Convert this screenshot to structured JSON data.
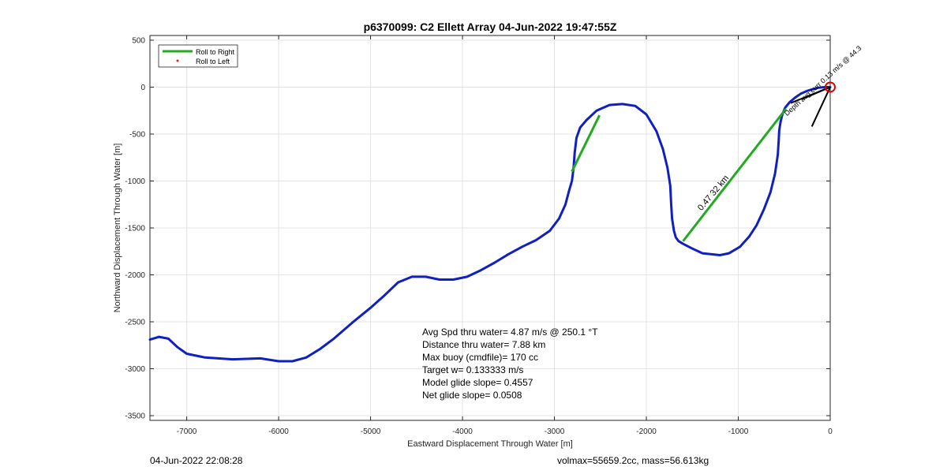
{
  "chart_data": {
    "type": "line",
    "title": "p6370099: C2 Ellett Array 04-Jun-2022 19:47:55Z",
    "xlabel": "Eastward Displacement Through Water [m]",
    "ylabel": "Northward Displacement Through Water [m]",
    "xlim": [
      -7400,
      0
    ],
    "ylim": [
      -3550,
      550
    ],
    "xticks": [
      -7000,
      -6000,
      -5000,
      -4000,
      -3000,
      -2000,
      -1000,
      0
    ],
    "yticks": [
      500,
      0,
      -500,
      -1000,
      -1500,
      -2000,
      -2500,
      -3000,
      -3500
    ],
    "grid": true,
    "legend_position": "top-left",
    "legend": [
      {
        "label": "Roll to Right",
        "color": "#22aa22",
        "marker": "line"
      },
      {
        "label": "Roll to Left",
        "color": "#dd2222",
        "marker": "dot"
      }
    ],
    "track": {
      "color": "#1020c0",
      "x": [
        -7400,
        -7300,
        -7200,
        -7100,
        -7000,
        -6800,
        -6500,
        -6200,
        -6000,
        -5850,
        -5700,
        -5550,
        -5400,
        -5200,
        -5000,
        -4850,
        -4700,
        -4550,
        -4400,
        -4250,
        -4100,
        -3950,
        -3800,
        -3650,
        -3500,
        -3350,
        -3200,
        -3050,
        -2950,
        -2880,
        -2840,
        -2810,
        -2800,
        -2790,
        -2780,
        -2760,
        -2720,
        -2650,
        -2540,
        -2400,
        -2260,
        -2120,
        -2000,
        -1890,
        -1820,
        -1770,
        -1740,
        -1730,
        -1720,
        -1700,
        -1680,
        -1650,
        -1600,
        -1500,
        -1390,
        -1300,
        -1200,
        -1100,
        -980,
        -880,
        -800,
        -720,
        -650,
        -600,
        -570,
        -560,
        -555,
        -540,
        -520,
        -490,
        -440,
        -380,
        -320,
        -250,
        -180,
        -120,
        -60,
        -20,
        0
      ],
      "y": [
        -2690,
        -2660,
        -2680,
        -2770,
        -2840,
        -2880,
        -2900,
        -2890,
        -2920,
        -2920,
        -2880,
        -2790,
        -2680,
        -2510,
        -2350,
        -2220,
        -2080,
        -2020,
        -2020,
        -2050,
        -2050,
        -2020,
        -1950,
        -1870,
        -1780,
        -1700,
        -1630,
        -1530,
        -1400,
        -1250,
        -1100,
        -1000,
        -930,
        -840,
        -700,
        -540,
        -430,
        -350,
        -250,
        -190,
        -180,
        -200,
        -290,
        -470,
        -660,
        -860,
        -1050,
        -1250,
        -1400,
        -1530,
        -1600,
        -1640,
        -1670,
        -1720,
        -1770,
        -1780,
        -1790,
        -1770,
        -1700,
        -1590,
        -1470,
        -1300,
        -1120,
        -920,
        -720,
        -560,
        -460,
        -370,
        -290,
        -220,
        -160,
        -110,
        -70,
        -40,
        -20,
        -5,
        0,
        0,
        0
      ]
    },
    "roll_right_segments": [
      {
        "x": [
          -2810,
          -2510
        ],
        "y": [
          -900,
          -300
        ]
      },
      {
        "x": [
          -1600,
          -480
        ],
        "y": [
          -1640,
          -230
        ]
      }
    ],
    "roll_left_points": [],
    "current_arrows": [
      {
        "x": [
          0,
          -430
        ],
        "y": [
          0,
          -170
        ]
      },
      {
        "x": [
          0,
          -200
        ],
        "y": [
          0,
          -420
        ]
      },
      {
        "x": [
          0,
          -310
        ],
        "y": [
          0,
          -130
        ]
      }
    ],
    "end_marker": {
      "x": 0,
      "y": 0,
      "color": "#dd0000"
    },
    "arrow_label": "Depth avg curr 0.13 m/s @ 44.3",
    "track_label": "0.47 32 km",
    "stats": [
      "Avg Spd thru water=  4.87 m/s @ 250.1 °T",
      "Distance thru water=  7.88 km",
      "Max buoy (cmdfile)= 170 cc",
      "Target w= 0.133333 m/s",
      "Model glide slope= 0.4557",
      "Net glide slope= 0.0508"
    ]
  },
  "footer": {
    "timestamp": "04-Jun-2022 22:08:28",
    "volume_mass": "volmax=55659.2cc, mass=56.613kg"
  }
}
